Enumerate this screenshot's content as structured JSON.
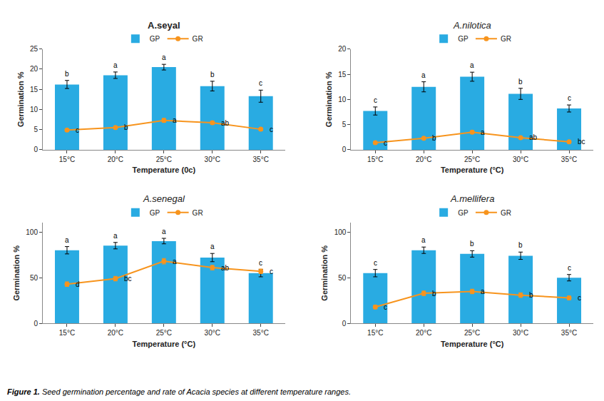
{
  "chart_data": [
    {
      "type": "bar",
      "title": "A.seyal",
      "xlabel": "Temperature (0c)",
      "ylabel": "Germination %",
      "categories": [
        "15°C",
        "20°C",
        "25°C",
        "30°C",
        "35°C"
      ],
      "series": [
        {
          "name": "GP",
          "type": "bar",
          "color": "#29ABE2",
          "values": [
            16.2,
            18.5,
            20.5,
            15.8,
            13.3
          ],
          "errors": [
            1.0,
            0.8,
            0.7,
            1.2,
            1.5
          ]
        },
        {
          "name": "GR",
          "type": "line",
          "color": "#F7941D",
          "marker": "circle",
          "values": [
            4.9,
            5.5,
            7.3,
            6.7,
            5.1
          ],
          "errors": [
            0.3,
            0.3,
            0.5,
            0.4,
            0.3
          ]
        }
      ],
      "annotations": [
        {
          "category": "15°C",
          "series": "GP",
          "text": "b"
        },
        {
          "category": "20°C",
          "series": "GP",
          "text": "a"
        },
        {
          "category": "25°C",
          "series": "GP",
          "text": "a"
        },
        {
          "category": "30°C",
          "series": "GP",
          "text": "b"
        },
        {
          "category": "35°C",
          "series": "GP",
          "text": "c"
        },
        {
          "category": "15°C",
          "series": "GR",
          "text": "c"
        },
        {
          "category": "20°C",
          "series": "GR",
          "text": "b"
        },
        {
          "category": "25°C",
          "series": "GR",
          "text": "a"
        },
        {
          "category": "30°C",
          "series": "GR",
          "text": "ab"
        },
        {
          "category": "35°C",
          "series": "GR",
          "text": "c"
        }
      ],
      "ylim": [
        0,
        25
      ],
      "yticks": [
        0,
        5,
        10,
        15,
        20,
        25
      ],
      "grid": false,
      "legend": "top"
    },
    {
      "type": "bar",
      "title": "A.nilotica",
      "xlabel": "Temperature (°C)",
      "ylabel": "Germination %",
      "categories": [
        "15°C",
        "20°C",
        "25°C",
        "30°C",
        "35°C"
      ],
      "series": [
        {
          "name": "GP",
          "type": "bar",
          "color": "#29ABE2",
          "values": [
            7.7,
            12.5,
            14.5,
            11.1,
            8.2
          ],
          "errors": [
            0.8,
            1.0,
            0.9,
            1.1,
            0.7
          ]
        },
        {
          "name": "GR",
          "type": "line",
          "color": "#F7941D",
          "marker": "circle",
          "values": [
            1.4,
            2.3,
            3.5,
            2.4,
            1.6
          ],
          "errors": [
            0.2,
            0.2,
            0.3,
            0.2,
            0.2
          ]
        }
      ],
      "annotations": [
        {
          "category": "15°C",
          "series": "GP",
          "text": "c"
        },
        {
          "category": "20°C",
          "series": "GP",
          "text": "a"
        },
        {
          "category": "25°C",
          "series": "GP",
          "text": "a"
        },
        {
          "category": "30°C",
          "series": "GP",
          "text": "b"
        },
        {
          "category": "35°C",
          "series": "GP",
          "text": "c"
        },
        {
          "category": "15°C",
          "series": "GR",
          "text": "c"
        },
        {
          "category": "20°C",
          "series": "GR",
          "text": "b"
        },
        {
          "category": "25°C",
          "series": "GR",
          "text": "a"
        },
        {
          "category": "30°C",
          "series": "GR",
          "text": "ab"
        },
        {
          "category": "35°C",
          "series": "GR",
          "text": "bc"
        }
      ],
      "ylim": [
        0,
        20
      ],
      "yticks": [
        0,
        5,
        10,
        15,
        20
      ],
      "grid": false,
      "legend": "top"
    },
    {
      "type": "bar",
      "title": "A.senegal",
      "xlabel": "Temperature (°C)",
      "ylabel": "Germination %",
      "categories": [
        "15°C",
        "20°C",
        "25°C",
        "30°C",
        "35°C"
      ],
      "series": [
        {
          "name": "GP",
          "type": "bar",
          "color": "#29ABE2",
          "values": [
            80,
            85,
            90,
            72,
            55
          ],
          "errors": [
            4.0,
            3.5,
            3.0,
            4.5,
            4.0
          ]
        },
        {
          "name": "GR",
          "type": "line",
          "color": "#F7941D",
          "marker": "circle",
          "values": [
            43,
            49,
            68,
            61,
            57
          ],
          "errors": [
            2.5,
            2.5,
            3.0,
            2.5,
            2.5
          ]
        }
      ],
      "annotations": [
        {
          "category": "15°C",
          "series": "GP",
          "text": "a"
        },
        {
          "category": "20°C",
          "series": "GP",
          "text": "a"
        },
        {
          "category": "25°C",
          "series": "GP",
          "text": "a"
        },
        {
          "category": "30°C",
          "series": "GP",
          "text": "a"
        },
        {
          "category": "35°C",
          "series": "GP",
          "text": "c"
        },
        {
          "category": "15°C",
          "series": "GR",
          "text": "d"
        },
        {
          "category": "20°C",
          "series": "GR",
          "text": "bc"
        },
        {
          "category": "25°C",
          "series": "GR",
          "text": "a"
        },
        {
          "category": "30°C",
          "series": "GR",
          "text": "ab"
        },
        {
          "category": "35°C",
          "series": "GR",
          "text": "c"
        }
      ],
      "ylim": [
        0,
        110
      ],
      "yticks": [
        0,
        50,
        100
      ],
      "grid": false,
      "legend": "top"
    },
    {
      "type": "bar",
      "title": "A.mellifera",
      "xlabel": "Temperature (°C)",
      "ylabel": "Germination %",
      "categories": [
        "15°C",
        "20°C",
        "25°C",
        "30°C",
        "35°C"
      ],
      "series": [
        {
          "name": "GP",
          "type": "bar",
          "color": "#29ABE2",
          "values": [
            55,
            80,
            76,
            74,
            50
          ],
          "errors": [
            4.0,
            3.5,
            3.5,
            4.0,
            3.5
          ]
        },
        {
          "name": "GR",
          "type": "line",
          "color": "#F7941D",
          "marker": "circle",
          "values": [
            18,
            33,
            35,
            31,
            28
          ],
          "errors": [
            2.0,
            2.5,
            2.5,
            2.5,
            2.0
          ]
        }
      ],
      "annotations": [
        {
          "category": "15°C",
          "series": "GP",
          "text": "c"
        },
        {
          "category": "20°C",
          "series": "GP",
          "text": "a"
        },
        {
          "category": "25°C",
          "series": "GP",
          "text": "b"
        },
        {
          "category": "30°C",
          "series": "GP",
          "text": "b"
        },
        {
          "category": "35°C",
          "series": "GP",
          "text": "c"
        },
        {
          "category": "15°C",
          "series": "GR",
          "text": "c"
        },
        {
          "category": "20°C",
          "series": "GR",
          "text": "b"
        },
        {
          "category": "25°C",
          "series": "GR",
          "text": "a"
        },
        {
          "category": "30°C",
          "series": "GR",
          "text": "b"
        },
        {
          "category": "35°C",
          "series": "GR",
          "text": "c"
        }
      ],
      "ylim": [
        0,
        110
      ],
      "yticks": [
        0,
        50,
        100
      ],
      "grid": false,
      "legend": "top"
    }
  ],
  "caption": {
    "bold": "Figure 1.",
    "text": "Seed germination percentage and rate of Acacia species at different temperature ranges."
  }
}
